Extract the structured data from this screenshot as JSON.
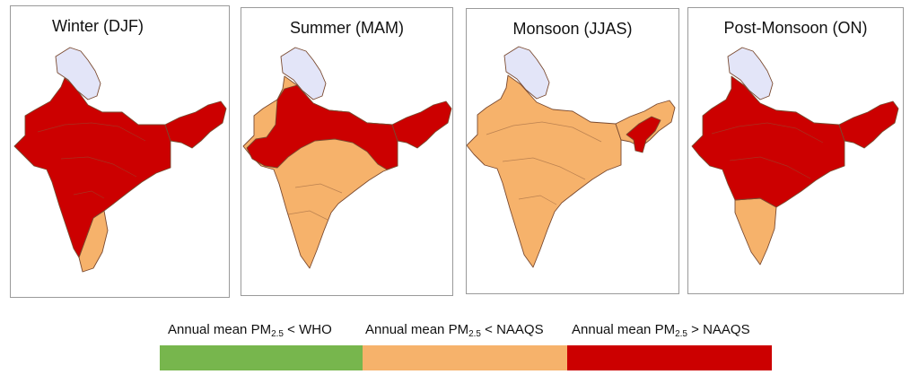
{
  "panels": [
    {
      "title": "Winter (DJF)",
      "regions": {
        "north": "white",
        "main": "red",
        "south": "orange",
        "northeast": "red"
      }
    },
    {
      "title": "Summer (MAM)",
      "regions": {
        "north": "white",
        "main": "orange",
        "band": "red",
        "northeast": "red"
      }
    },
    {
      "title": "Monsoon (JJAS)",
      "regions": {
        "north": "white",
        "main": "orange",
        "northeast": "orange",
        "ne_core": "red"
      }
    },
    {
      "title": "Post-Monsoon (ON)",
      "regions": {
        "north": "white",
        "main": "red",
        "south": "orange",
        "northeast": "red"
      }
    }
  ],
  "legend": [
    {
      "prefix": "Annual mean PM",
      "sub": "2.5",
      "suffix": " < WHO",
      "color": "#77b64d"
    },
    {
      "prefix": "Annual mean PM",
      "sub": "2.5",
      "suffix": " < NAAQS",
      "color": "#f6b26b"
    },
    {
      "prefix": "Annual mean PM",
      "sub": "2.5",
      "suffix": " > NAAQS",
      "color": "#cc0000"
    }
  ],
  "colors": {
    "white": "#e3e5f8",
    "orange": "#f6b26b",
    "red": "#cc0000",
    "outline": "#7a4a30"
  }
}
